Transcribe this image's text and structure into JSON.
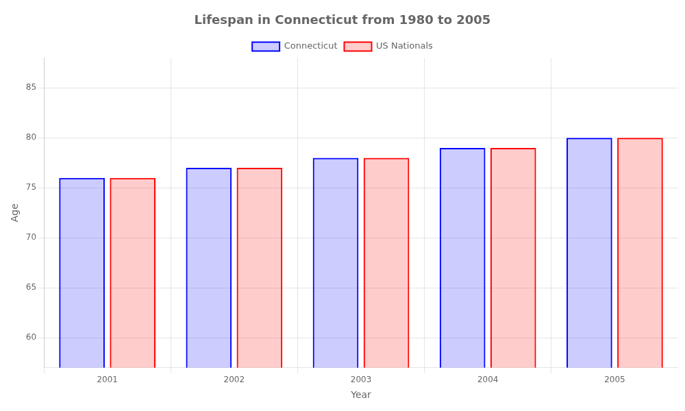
{
  "chart_data": {
    "type": "bar",
    "title": "Lifespan in Connecticut from 1980 to 2005",
    "x_label": "Year",
    "y_label": "Age",
    "categories": [
      "2001",
      "2002",
      "2003",
      "2004",
      "2005"
    ],
    "series": [
      {
        "name": "Connecticut",
        "color": "#0000ff",
        "values": [
          76,
          77,
          78,
          79,
          80
        ]
      },
      {
        "name": "US Nationals",
        "color": "#ff0000",
        "values": [
          76,
          77,
          78,
          79,
          80
        ]
      }
    ],
    "ylim": [
      57,
      88
    ],
    "yticks": [
      60,
      65,
      70,
      75,
      80,
      85
    ],
    "grid": true,
    "legend": "top"
  }
}
